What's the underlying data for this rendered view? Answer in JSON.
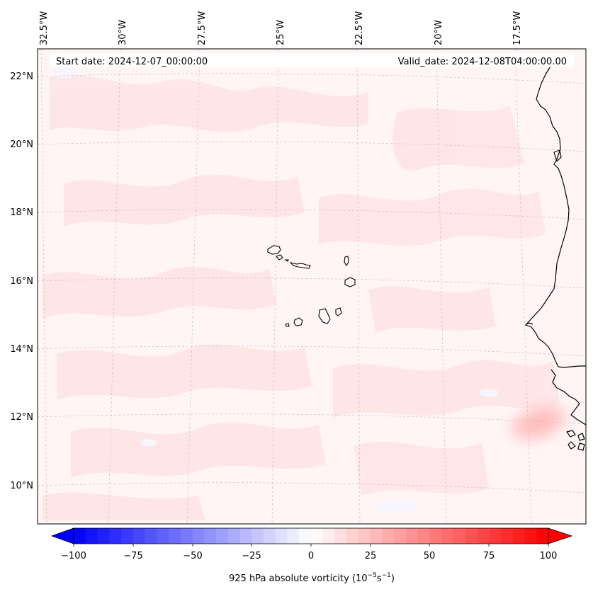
{
  "header": {
    "start_date": "Start date: 2024-12-07_00:00:00",
    "valid_date": "Valid_date: 2024-12-08T04:00:00.00"
  },
  "axes": {
    "lon_ticks": [
      "32.5°W",
      "30°W",
      "27.5°W",
      "25°W",
      "22.5°W",
      "20°W",
      "17.5°W"
    ],
    "lat_ticks": [
      "22°N",
      "20°N",
      "18°N",
      "16°N",
      "14°N",
      "12°N",
      "10°N"
    ]
  },
  "colorbar": {
    "label_prefix": "925 hPa absolute vorticity (10",
    "label_exp1": "−5",
    "label_mid": "s",
    "label_exp2": "−1",
    "label_suffix": ")",
    "ticks": [
      "−100",
      "−75",
      "−50",
      "−25",
      "0",
      "25",
      "50",
      "75",
      "100"
    ],
    "min": -100,
    "max": 100,
    "step": 5,
    "colors": {
      "negative_end": "#0000ff",
      "positive_end": "#ff0000",
      "center": "#ffffff"
    }
  },
  "map": {
    "projection": "Lambert conformal",
    "lon_range": [
      -33,
      -15.5
    ],
    "lat_range": [
      9,
      22.8
    ],
    "field": "925 hPa absolute vorticity"
  }
}
